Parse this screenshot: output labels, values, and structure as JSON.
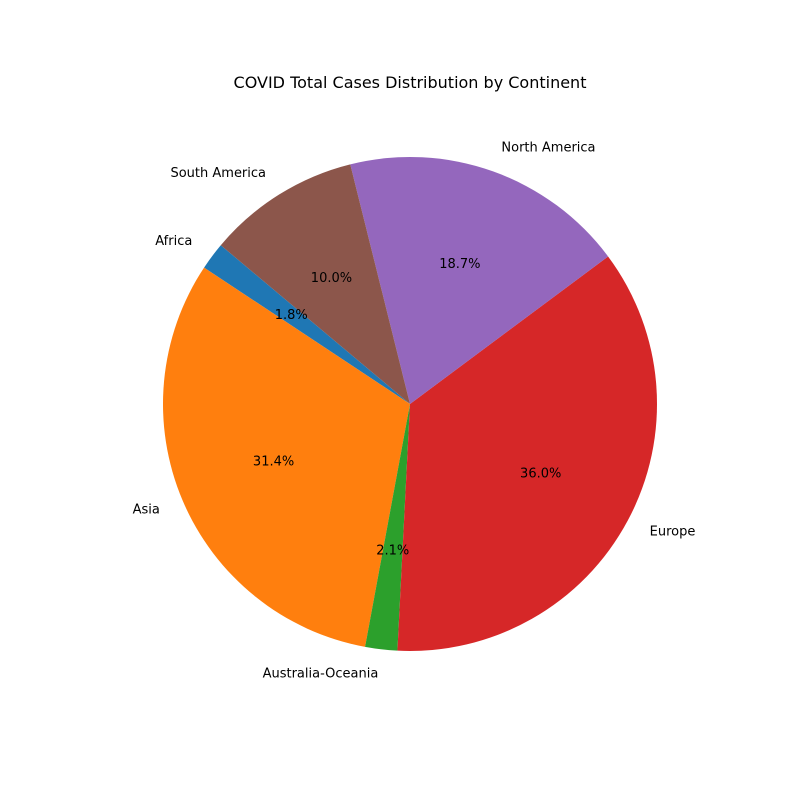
{
  "chart_data": {
    "type": "pie",
    "title": "COVID Total Cases Distribution by Continent",
    "start_angle_deg": 140,
    "direction": "counterclockwise",
    "slices": [
      {
        "label": "Africa",
        "value": 1.8,
        "pct_text": "1.8%",
        "color": "#1f77b4"
      },
      {
        "label": "Asia",
        "value": 31.4,
        "pct_text": "31.4%",
        "color": "#ff7f0e"
      },
      {
        "label": "Australia-Oceania",
        "value": 2.1,
        "pct_text": "2.1%",
        "color": "#2ca02c"
      },
      {
        "label": "Europe",
        "value": 36.0,
        "pct_text": "36.0%",
        "color": "#d62728"
      },
      {
        "label": "North America",
        "value": 18.7,
        "pct_text": "18.7%",
        "color": "#9467bd"
      },
      {
        "label": "South America",
        "value": 10.0,
        "pct_text": "10.0%",
        "color": "#8c564b"
      }
    ]
  }
}
